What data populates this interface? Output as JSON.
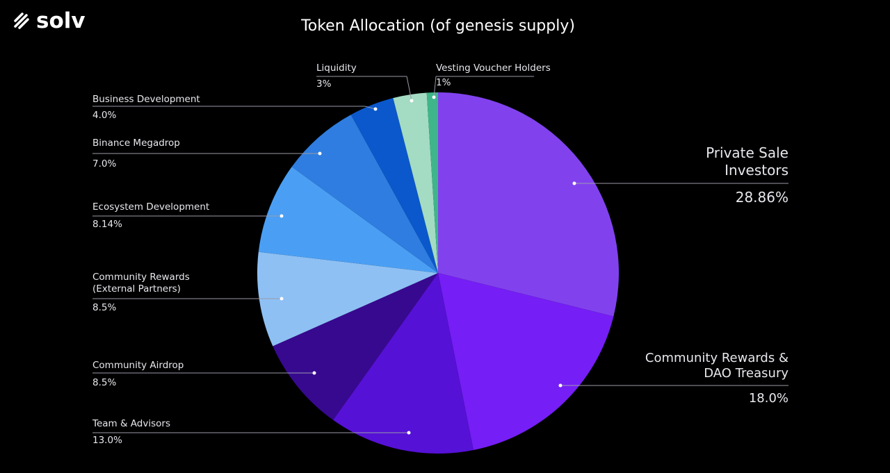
{
  "brand": "solv",
  "chart_data": {
    "type": "pie",
    "title": "Token Allocation (of genesis supply)",
    "categories": [
      "Private Sale Investors",
      "Community Rewards & DAO Treasury",
      "Team & Advisors",
      "Community Airdrop",
      "Community Rewards (External Partners)",
      "Ecosystem Development",
      "Binance Megadrop",
      "Business Development",
      "Liquidity",
      "Vesting Voucher Holders"
    ],
    "values": [
      28.86,
      18.0,
      13.0,
      8.5,
      8.5,
      8.14,
      7.0,
      4.0,
      3,
      1
    ],
    "value_labels": [
      "28.86%",
      "18.0%",
      "13.0%",
      "8.5%",
      "8.5%",
      "8.14%",
      "7.0%",
      "4.0%",
      "3%",
      "1%"
    ],
    "colors": [
      "#8142ee",
      "#761ef6",
      "#5611d6",
      "#37098f",
      "#8ec0f4",
      "#4a9ff4",
      "#2f7de0",
      "#0b58cc",
      "#a4dbc3",
      "#3fb68a"
    ]
  }
}
